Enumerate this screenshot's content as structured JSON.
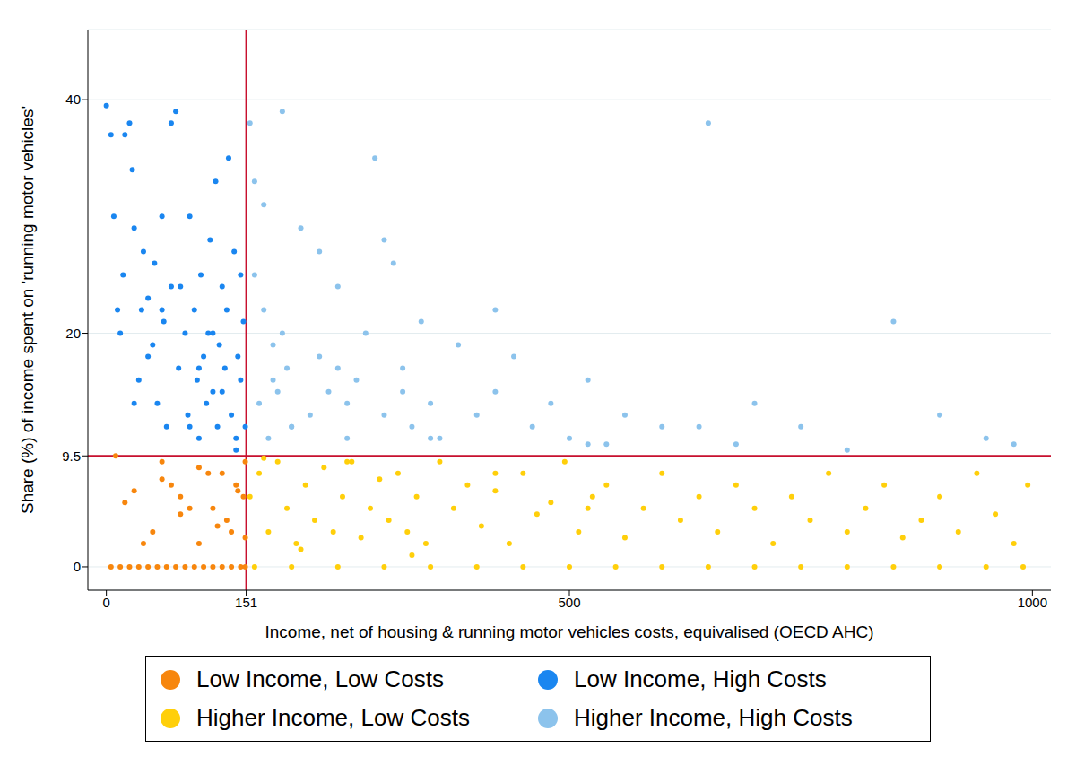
{
  "chart_data": {
    "type": "scatter",
    "x_label": "Income, net of housing & running motor vehicles costs, equivalised (OECD AHC)",
    "y_label": "Share (%) of income spent on 'running motor vehicles'",
    "xlim": [
      -20,
      1020
    ],
    "xticks": [
      0,
      151,
      500,
      1000
    ],
    "ylim": [
      -2,
      46
    ],
    "yticks": [
      0,
      9.5,
      20,
      40
    ],
    "grid": true,
    "legend": "bottom",
    "marker": "circle",
    "thresholds": {
      "x": 151,
      "y": 9.5
    },
    "series": [
      {
        "name": "Low Income, Low Costs",
        "color": "#f7860d",
        "x": [
          5,
          15,
          25,
          35,
          45,
          55,
          65,
          75,
          85,
          95,
          105,
          115,
          125,
          135,
          145,
          150,
          10,
          30,
          50,
          70,
          90,
          110,
          130,
          148,
          20,
          40,
          60,
          80,
          100,
          120,
          140,
          150,
          60,
          80,
          100,
          115,
          125,
          135,
          142,
          150
        ],
        "values": [
          0,
          0,
          0,
          0,
          0,
          0,
          0,
          0,
          0,
          0,
          0,
          0,
          0,
          0,
          0,
          0,
          9.5,
          6.5,
          3,
          7,
          5,
          8,
          4,
          6,
          5.5,
          2,
          7.5,
          4.5,
          8.5,
          3.5,
          7,
          2.5,
          9,
          6,
          2,
          5,
          8,
          3,
          6.5,
          9
        ]
      },
      {
        "name": "Low Income, High Costs",
        "color": "#1a86f0",
        "x": [
          0,
          5,
          8,
          12,
          15,
          18,
          20,
          25,
          28,
          30,
          35,
          38,
          40,
          45,
          50,
          52,
          55,
          60,
          62,
          65,
          70,
          75,
          78,
          80,
          85,
          88,
          90,
          95,
          98,
          100,
          102,
          105,
          108,
          110,
          112,
          115,
          118,
          120,
          122,
          125,
          128,
          130,
          132,
          135,
          138,
          140,
          142,
          145,
          148,
          150,
          60,
          70,
          100,
          125,
          140,
          30,
          45,
          90,
          115,
          145
        ],
        "values": [
          39.5,
          37,
          30,
          22,
          20,
          25,
          37,
          38,
          34,
          29,
          16,
          22,
          27,
          23,
          19,
          26,
          14,
          30,
          21,
          12,
          38,
          39,
          17,
          24,
          20,
          13,
          30,
          22,
          16,
          11,
          25,
          18,
          14,
          20,
          28,
          15,
          33,
          12,
          19,
          24,
          17,
          22,
          35,
          13,
          27,
          10,
          18,
          16,
          21,
          12,
          22,
          24,
          17,
          15,
          11,
          14,
          18,
          12,
          20,
          25
        ]
      },
      {
        "name": "Higher Income, Low Costs",
        "color": "#ffcf0a",
        "x": [
          160,
          200,
          250,
          300,
          350,
          400,
          450,
          500,
          550,
          600,
          650,
          700,
          750,
          800,
          850,
          900,
          950,
          990,
          155,
          165,
          175,
          185,
          195,
          205,
          215,
          225,
          235,
          245,
          255,
          265,
          275,
          285,
          295,
          305,
          315,
          325,
          335,
          345,
          360,
          375,
          390,
          405,
          420,
          435,
          450,
          465,
          480,
          495,
          510,
          525,
          540,
          560,
          580,
          600,
          620,
          640,
          660,
          680,
          700,
          720,
          740,
          760,
          780,
          800,
          820,
          840,
          860,
          880,
          900,
          920,
          940,
          960,
          980,
          995,
          170,
          210,
          260,
          330,
          420,
          520
        ],
        "values": [
          0,
          0,
          0,
          0,
          0,
          0,
          0,
          0,
          0,
          0,
          0,
          0,
          0,
          0,
          0,
          0,
          0,
          0,
          6,
          8,
          3,
          9,
          5,
          2,
          7,
          4,
          8.5,
          3,
          6,
          9,
          2.5,
          5,
          7.5,
          4,
          8,
          3,
          6,
          2,
          9,
          5,
          7,
          3.5,
          6.5,
          2,
          8,
          4.5,
          5.5,
          9,
          3,
          6,
          7,
          2.5,
          5,
          8,
          4,
          6,
          3,
          7,
          5,
          2,
          6,
          4,
          8,
          3,
          5,
          7,
          2.5,
          4,
          6,
          3,
          8,
          4.5,
          2,
          7,
          9.3,
          1.5,
          9,
          1,
          8,
          5
        ]
      },
      {
        "name": "Higher Income, High Costs",
        "color": "#8cc3ec",
        "x": [
          155,
          160,
          165,
          170,
          175,
          180,
          185,
          190,
          195,
          200,
          210,
          220,
          230,
          240,
          250,
          260,
          270,
          280,
          290,
          300,
          310,
          320,
          330,
          340,
          350,
          360,
          380,
          400,
          420,
          440,
          460,
          480,
          500,
          520,
          540,
          560,
          600,
          650,
          680,
          700,
          750,
          800,
          850,
          900,
          950,
          980,
          160,
          180,
          200,
          230,
          260,
          300,
          350,
          420,
          520,
          640,
          170,
          190,
          250,
          320
        ],
        "values": [
          38,
          33,
          14,
          22,
          11,
          19,
          15,
          39,
          17,
          12,
          29,
          13,
          18,
          15,
          24,
          11,
          16,
          20,
          35,
          13,
          26,
          17,
          12,
          21,
          14,
          11,
          19,
          13,
          15,
          18,
          12,
          14,
          11,
          16,
          10.5,
          13,
          12,
          38,
          10.5,
          14,
          12,
          10,
          21,
          13,
          11,
          10.5,
          25,
          16,
          12,
          27,
          14,
          28,
          11,
          22,
          10.5,
          12,
          31,
          20,
          17,
          15
        ]
      }
    ]
  }
}
